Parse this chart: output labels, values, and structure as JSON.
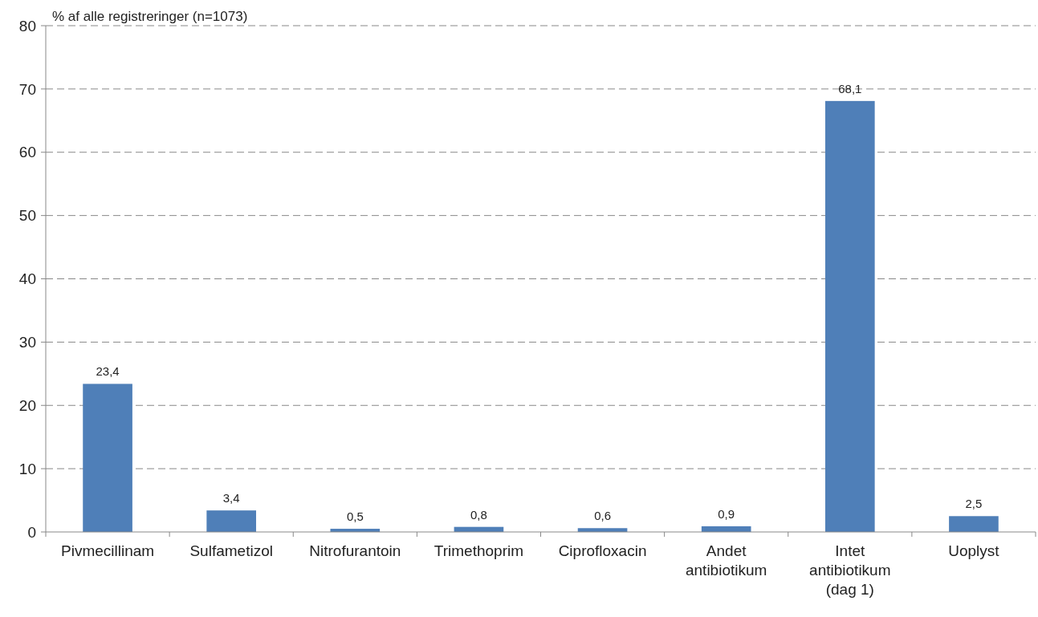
{
  "chart_data": {
    "type": "bar",
    "ylabel": "% af alle registreringer (n=1073)",
    "categories": [
      "Pivmecillinam",
      "Sulfametizol",
      "Nitrofurantoin",
      "Trimethoprim",
      "Ciprofloxacin",
      "Andet antibiotikum",
      "Intet antibiotikum (dag 1)",
      "Uoplyst"
    ],
    "values": [
      23.4,
      3.4,
      0.5,
      0.8,
      0.6,
      0.9,
      68.1,
      2.5
    ],
    "value_labels": [
      "23,4",
      "3,4",
      "0,5",
      "0,8",
      "0,6",
      "0,9",
      "68,1",
      "2,5"
    ],
    "color": "#4f7fb8",
    "ylim": [
      0,
      80
    ],
    "yticks": [
      0,
      10,
      20,
      30,
      40,
      50,
      60,
      70,
      80
    ],
    "grid": "y"
  }
}
